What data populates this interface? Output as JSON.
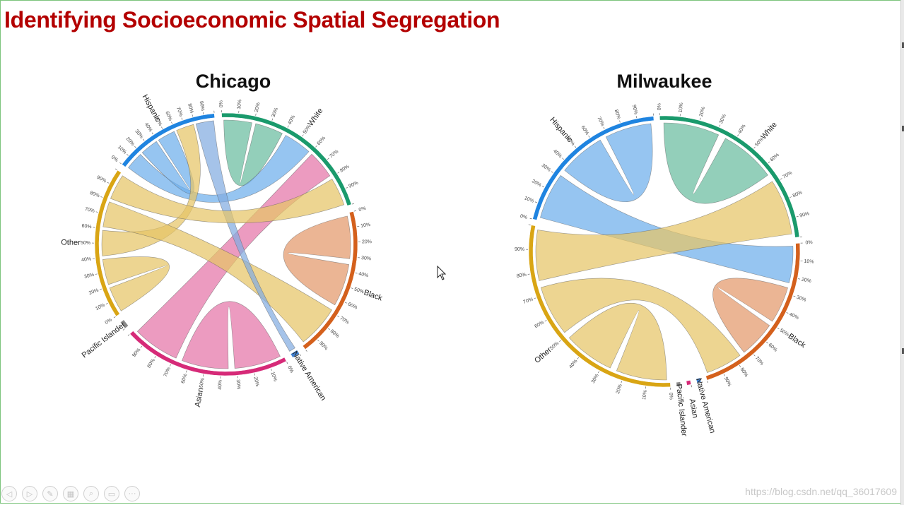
{
  "slide": {
    "title": "Identifying Socioeconomic Spatial Segregation",
    "watermark": "https://blog.csdn.net/qq_36017609"
  },
  "toolbar": {
    "buttons": [
      {
        "name": "prev-button",
        "glyph": "◁"
      },
      {
        "name": "next-button",
        "glyph": "▷"
      },
      {
        "name": "pen-button",
        "glyph": "✎"
      },
      {
        "name": "slides-button",
        "glyph": "▦"
      },
      {
        "name": "zoom-button",
        "glyph": "⌕"
      },
      {
        "name": "subtitles-button",
        "glyph": "▭"
      },
      {
        "name": "more-button",
        "glyph": "···"
      }
    ]
  },
  "colors": {
    "White": "#1a9a6c",
    "Black": "#d4601c",
    "Native American": "#3e7fd0",
    "Asian": "#d62a78",
    "Pacific Islander": "#8a8a8a",
    "Other": "#d9a514",
    "Hispanic": "#1f84e0"
  },
  "diagrams": [
    {
      "title": "Chicago",
      "groups": [
        {
          "label": "White",
          "share": 0.22
        },
        {
          "label": "Black",
          "share": 0.2
        },
        {
          "label": "Native American",
          "share": 0.01
        },
        {
          "label": "Asian",
          "share": 0.22
        },
        {
          "label": "Pacific Islander",
          "share": 0.01
        },
        {
          "label": "Other",
          "share": 0.2
        },
        {
          "label": "Hispanic",
          "share": 0.14
        }
      ],
      "ribbons": [
        {
          "source": "White",
          "target": "White",
          "color": "#1a9a6c"
        },
        {
          "source": "Hispanic",
          "target": "White",
          "color": "#1f84e0"
        },
        {
          "source": "Hispanic",
          "target": "Hispanic",
          "color": "#1f84e0"
        },
        {
          "source": "Black",
          "target": "Black",
          "color": "#d4601c"
        },
        {
          "source": "Asian",
          "target": "Asian",
          "color": "#d62a78"
        },
        {
          "source": "Asian",
          "target": "White",
          "color": "#d62a78"
        },
        {
          "source": "Other",
          "target": "Other",
          "color": "#d9a514"
        },
        {
          "source": "Other",
          "target": "Hispanic",
          "color": "#d9a514"
        },
        {
          "source": "Other",
          "target": "Black",
          "color": "#d9a514"
        },
        {
          "source": "Native American",
          "target": "Hispanic",
          "color": "#3e7fd0"
        },
        {
          "source": "Other",
          "target": "White",
          "color": "#d9a514"
        }
      ]
    },
    {
      "title": "Milwaukee",
      "groups": [
        {
          "label": "White",
          "share": 0.24
        },
        {
          "label": "Black",
          "share": 0.21
        },
        {
          "label": "Native American",
          "share": 0.005
        },
        {
          "label": "Asian",
          "share": 0.005
        },
        {
          "label": "Pacific Islander",
          "share": 0.005
        },
        {
          "label": "Other",
          "share": 0.29
        },
        {
          "label": "Hispanic",
          "share": 0.2
        }
      ],
      "ribbons": [
        {
          "source": "White",
          "target": "White",
          "color": "#1a9a6c"
        },
        {
          "source": "Hispanic",
          "target": "Black",
          "color": "#1f84e0"
        },
        {
          "source": "Hispanic",
          "target": "Hispanic",
          "color": "#1f84e0"
        },
        {
          "source": "Black",
          "target": "Black",
          "color": "#d4601c"
        },
        {
          "source": "Other",
          "target": "Other",
          "color": "#d9a514"
        },
        {
          "source": "Other",
          "target": "Black",
          "color": "#d9a514"
        },
        {
          "source": "Other",
          "target": "White",
          "color": "#d9a514"
        }
      ]
    }
  ]
}
